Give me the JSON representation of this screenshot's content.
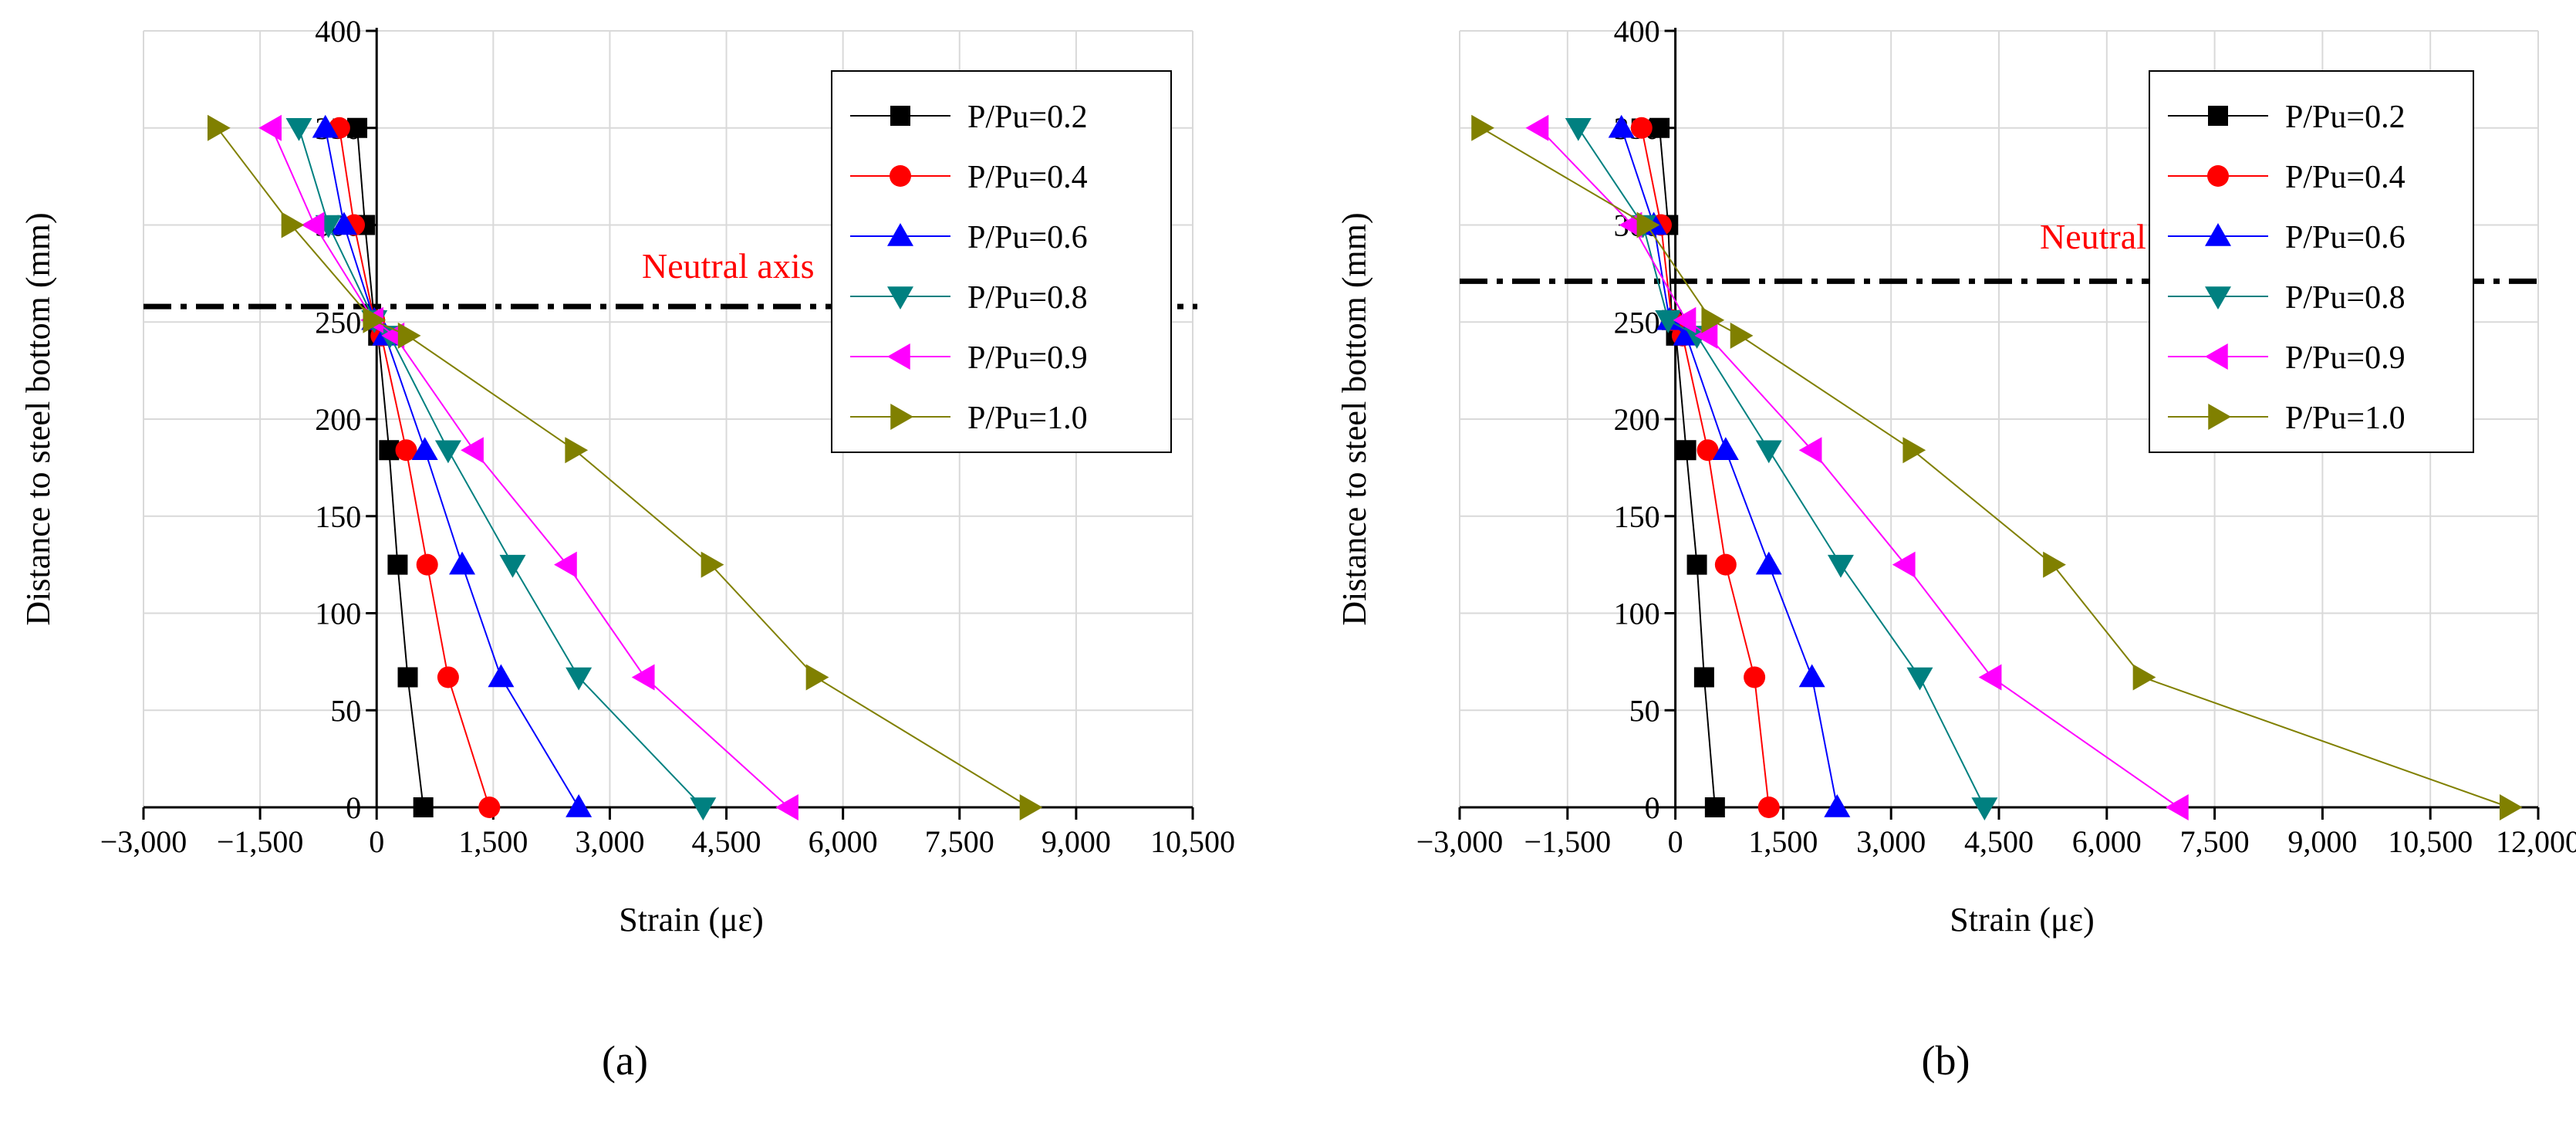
{
  "chart_data": [
    {
      "type": "line",
      "panel_label": "(a)",
      "xlabel": "Strain (με)",
      "ylabel": "Distance to steel bottom (mm)",
      "xlim": [
        -3000,
        10500
      ],
      "ylim": [
        0,
        400
      ],
      "xticks": [
        -3000,
        -1500,
        0,
        1500,
        3000,
        4500,
        6000,
        7500,
        9000,
        10500
      ],
      "xtick_labels": [
        "−3,000",
        "−1,500",
        "0",
        "1,500",
        "3,000",
        "4,500",
        "6,000",
        "7,500",
        "9,000",
        "10,500"
      ],
      "yticks": [
        0,
        50,
        100,
        150,
        200,
        250,
        300,
        350,
        400
      ],
      "ytick_labels": [
        "0",
        "50",
        "100",
        "150",
        "200",
        "250",
        "300",
        "350",
        "400"
      ],
      "grid": true,
      "legend_position": "top-right",
      "annotation": "Neutral axis",
      "neutral_axis_y": 258,
      "series": [
        {
          "name": "P/Pu=0.2",
          "marker": "square",
          "color": "#000000",
          "points": [
            [
              600,
              0
            ],
            [
              400,
              67
            ],
            [
              270,
              125
            ],
            [
              160,
              184
            ],
            [
              20,
              243
            ],
            [
              -30,
              251
            ],
            [
              -150,
              300
            ],
            [
              -250,
              350
            ]
          ]
        },
        {
          "name": "P/Pu=0.4",
          "marker": "circle",
          "color": "#ff0000",
          "points": [
            [
              1450,
              0
            ],
            [
              920,
              67
            ],
            [
              650,
              125
            ],
            [
              380,
              184
            ],
            [
              60,
              243
            ],
            [
              -30,
              251
            ],
            [
              -290,
              300
            ],
            [
              -480,
              350
            ]
          ]
        },
        {
          "name": "P/Pu=0.6",
          "marker": "triangle-up",
          "color": "#0000ff",
          "points": [
            [
              2600,
              0
            ],
            [
              1600,
              67
            ],
            [
              1100,
              125
            ],
            [
              620,
              184
            ],
            [
              110,
              243
            ],
            [
              -30,
              251
            ],
            [
              -420,
              300
            ],
            [
              -660,
              350
            ]
          ]
        },
        {
          "name": "P/Pu=0.8",
          "marker": "triangle-down",
          "color": "#008080",
          "points": [
            [
              4200,
              0
            ],
            [
              2600,
              67
            ],
            [
              1750,
              125
            ],
            [
              920,
              184
            ],
            [
              170,
              243
            ],
            [
              -30,
              251
            ],
            [
              -620,
              300
            ],
            [
              -1000,
              350
            ]
          ]
        },
        {
          "name": "P/Pu=0.9",
          "marker": "triangle-left",
          "color": "#ff00ff",
          "points": [
            [
              5300,
              0
            ],
            [
              3450,
              67
            ],
            [
              2450,
              125
            ],
            [
              1250,
              184
            ],
            [
              230,
              243
            ],
            [
              -40,
              251
            ],
            [
              -800,
              300
            ],
            [
              -1350,
              350
            ]
          ]
        },
        {
          "name": "P/Pu=1.0",
          "marker": "triangle-right",
          "color": "#808000",
          "points": [
            [
              8400,
              0
            ],
            [
              5650,
              67
            ],
            [
              4300,
              125
            ],
            [
              2550,
              184
            ],
            [
              400,
              243
            ],
            [
              -50,
              251
            ],
            [
              -1100,
              300
            ],
            [
              -2050,
              350
            ]
          ]
        }
      ]
    },
    {
      "type": "line",
      "panel_label": "(b)",
      "xlabel": "Strain (με)",
      "ylabel": "Distance to steel bottom (mm)",
      "xlim": [
        -3000,
        12000
      ],
      "ylim": [
        0,
        400
      ],
      "xticks": [
        -3000,
        -1500,
        0,
        1500,
        3000,
        4500,
        6000,
        7500,
        9000,
        10500,
        12000
      ],
      "xtick_labels": [
        "−3,000",
        "−1,500",
        "0",
        "1,500",
        "3,000",
        "4,500",
        "6,000",
        "7,500",
        "9,000",
        "10,500",
        "12,000"
      ],
      "yticks": [
        0,
        50,
        100,
        150,
        200,
        250,
        300,
        350,
        400
      ],
      "ytick_labels": [
        "0",
        "50",
        "100",
        "150",
        "200",
        "250",
        "300",
        "350",
        "400"
      ],
      "grid": true,
      "legend_position": "top-right",
      "annotation": "Neutral axis",
      "neutral_axis_y": 271,
      "series": [
        {
          "name": "P/Pu=0.2",
          "marker": "square",
          "color": "#000000",
          "points": [
            [
              550,
              0
            ],
            [
              400,
              67
            ],
            [
              300,
              125
            ],
            [
              150,
              184
            ],
            [
              10,
              243
            ],
            [
              -50,
              251
            ],
            [
              -100,
              300
            ],
            [
              -220,
              350
            ]
          ]
        },
        {
          "name": "P/Pu=0.4",
          "marker": "circle",
          "color": "#ff0000",
          "points": [
            [
              1300,
              0
            ],
            [
              1100,
              67
            ],
            [
              700,
              125
            ],
            [
              450,
              184
            ],
            [
              100,
              243
            ],
            [
              -50,
              251
            ],
            [
              -200,
              300
            ],
            [
              -470,
              350
            ]
          ]
        },
        {
          "name": "P/Pu=0.6",
          "marker": "triangle-up",
          "color": "#0000ff",
          "points": [
            [
              2250,
              0
            ],
            [
              1900,
              67
            ],
            [
              1300,
              125
            ],
            [
              700,
              184
            ],
            [
              150,
              243
            ],
            [
              -80,
              251
            ],
            [
              -300,
              300
            ],
            [
              -750,
              350
            ]
          ]
        },
        {
          "name": "P/Pu=0.8",
          "marker": "triangle-down",
          "color": "#008080",
          "points": [
            [
              4300,
              0
            ],
            [
              3400,
              67
            ],
            [
              2300,
              125
            ],
            [
              1300,
              184
            ],
            [
              300,
              243
            ],
            [
              -100,
              251
            ],
            [
              -450,
              300
            ],
            [
              -1350,
              350
            ]
          ]
        },
        {
          "name": "P/Pu=0.9",
          "marker": "triangle-left",
          "color": "#ff00ff",
          "points": [
            [
              7000,
              0
            ],
            [
              4400,
              67
            ],
            [
              3200,
              125
            ],
            [
              1900,
              184
            ],
            [
              450,
              243
            ],
            [
              150,
              251
            ],
            [
              -600,
              300
            ],
            [
              -1900,
              350
            ]
          ]
        },
        {
          "name": "P/Pu=1.0",
          "marker": "triangle-right",
          "color": "#808000",
          "points": [
            [
              11600,
              0
            ],
            [
              6500,
              67
            ],
            [
              5250,
              125
            ],
            [
              3300,
              184
            ],
            [
              900,
              243
            ],
            [
              500,
              251
            ],
            [
              -400,
              300
            ],
            [
              -2700,
              350
            ]
          ]
        }
      ]
    }
  ]
}
